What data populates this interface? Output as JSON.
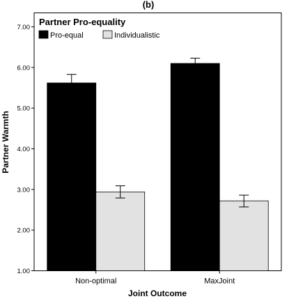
{
  "chart_data": {
    "type": "bar",
    "panel_label": "(b)",
    "legend_title": "Partner Pro-equality",
    "legend_position": "top-left",
    "xlabel": "Joint Outcome",
    "ylabel": "Partner Warmth",
    "ylim": [
      1.0,
      7.0
    ],
    "yticks": [
      "1.00",
      "2.00",
      "3.00",
      "4.00",
      "5.00",
      "6.00",
      "7.00"
    ],
    "grid": false,
    "categories": [
      "Non-optimal",
      "MaxJoint"
    ],
    "series": [
      {
        "name": "Pro-equal",
        "color": "#000000",
        "values": [
          5.62,
          6.1
        ],
        "error_low": [
          5.46,
          5.98
        ],
        "error_high": [
          5.83,
          6.23
        ]
      },
      {
        "name": "Individualistic",
        "color": "#e2e2e2",
        "values": [
          2.94,
          2.72
        ],
        "error_low": [
          2.79,
          2.57
        ],
        "error_high": [
          3.09,
          2.86
        ]
      }
    ]
  }
}
